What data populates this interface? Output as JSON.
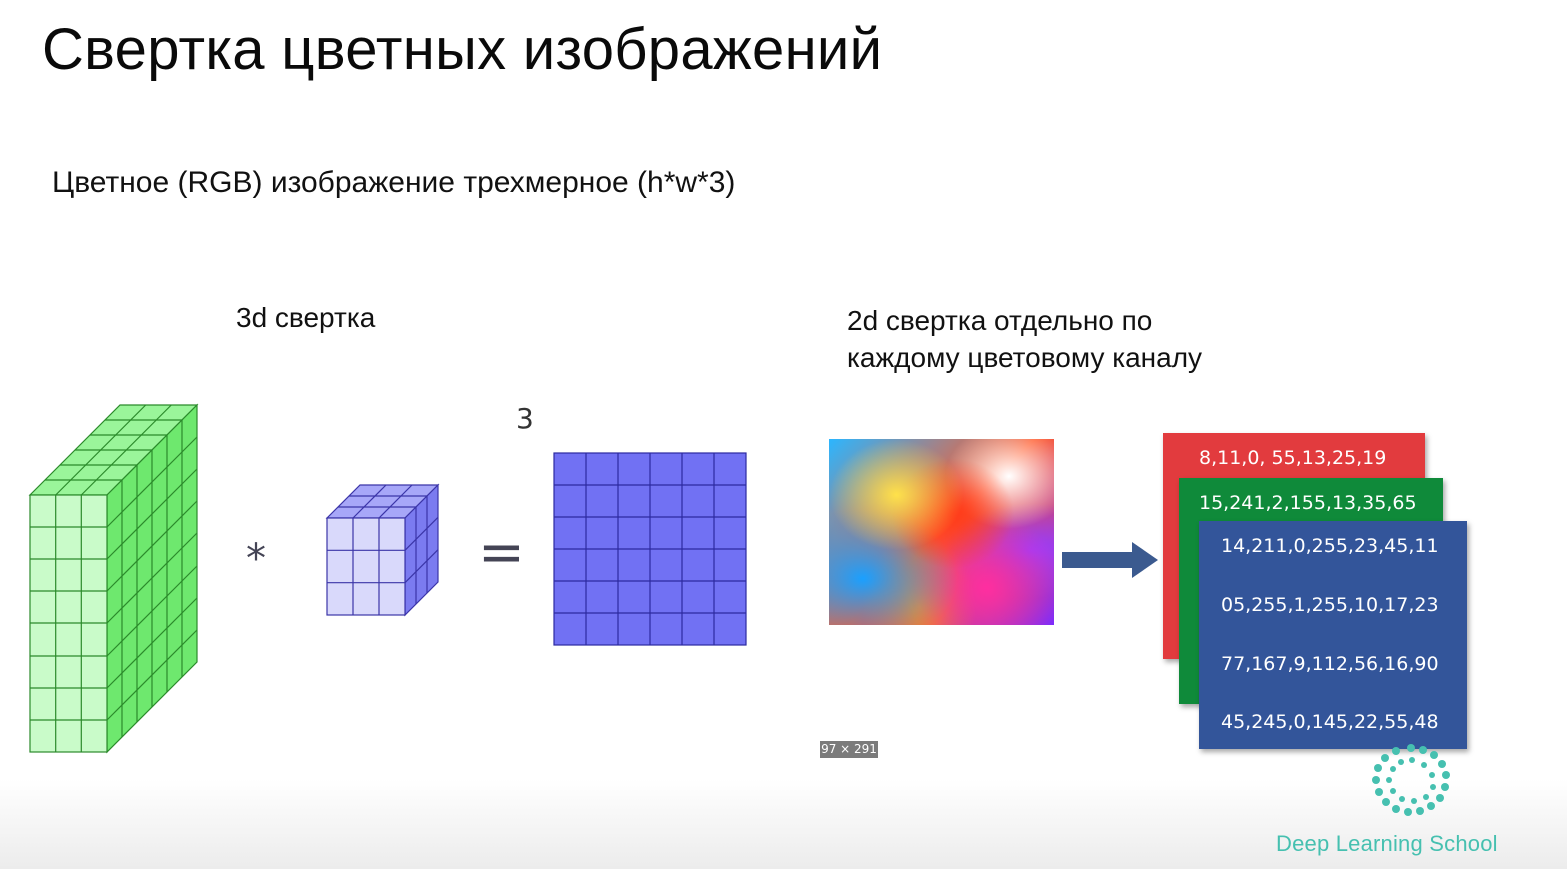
{
  "slide": {
    "title": "Свертка цветных изображений",
    "subtitle": "Цветное (RGB) изображение трехмерное (h*w*3)"
  },
  "left_panel": {
    "label": "3d свертка",
    "stray_glyph": "3",
    "operator_convolve": "*",
    "operator_equals": "="
  },
  "right_panel": {
    "label_lines": [
      "2d свертка отдельно по",
      "каждому цветовому каналу"
    ],
    "image_size_badge": "97 × 291",
    "channels": {
      "red": {
        "color": "#e23b3e",
        "rows": [
          "8,11,0, 55,13,25,19"
        ]
      },
      "green": {
        "color": "#0f8a3a",
        "rows": [
          "15,241,2,155,13,35,65"
        ]
      },
      "blue": {
        "color": "#33559a",
        "rows": [
          "14,211,0,255,23,45,11",
          "05,255,1,255,10,17,23",
          "77,167,9,112,56,16,90",
          "45,245,0,145,22,55,48"
        ]
      }
    }
  },
  "branding": {
    "logo_text": "Deep Learning School",
    "logo_color": "#46c0b0"
  },
  "colors": {
    "input_volume": "#7dfc7d",
    "kernel": "#9a9afa",
    "output_map": "#7171f3",
    "arrow": "#3b5a8f"
  }
}
